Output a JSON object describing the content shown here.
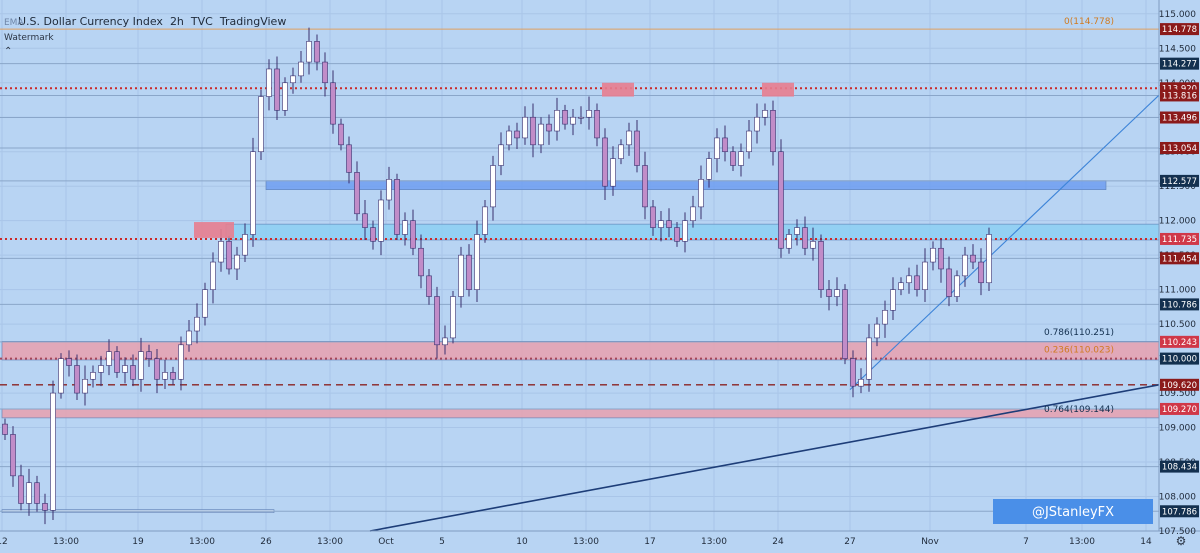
{
  "header": {
    "title": "U.S. Dollar Currency Index",
    "interval": "2h",
    "source": "TVC",
    "platform": "TradingView",
    "indicator": "EMA",
    "watermark_label": "Watermark"
  },
  "watermark": "@JStanleyFX",
  "colors": {
    "background": "#b8d4f3",
    "up_candle": "#ffffff",
    "down_candle": "#c18cc8",
    "wick": "#3a2f6e",
    "blue_zone": "#6f9ef0",
    "cyan_zone": "#8ccff2",
    "red_zone": "#e8a0ae",
    "dotted_red": "#cc2a2a",
    "dashed_dark_red": "#8b2323",
    "trendline_dark": "#1d3d78",
    "trendline_light": "#3d84d8",
    "label_dark_red": "#8b1a1a",
    "label_red": "#d03848",
    "label_blue": "#1f6fd0",
    "label_navy": "#13304f",
    "watermark_box": "#4a8fe8"
  },
  "chart_data": {
    "type": "candlestick",
    "title": "U.S. Dollar Currency Index · 2h · TVC",
    "ylim": [
      107.5,
      115.2
    ],
    "y_ticks": [
      107.5,
      108.0,
      108.5,
      109.0,
      109.5,
      110.0,
      110.5,
      111.0,
      111.5,
      112.0,
      112.5,
      113.0,
      113.5,
      114.0,
      114.5,
      115.0
    ],
    "x_ticks": [
      {
        "i": 0,
        "label": "12"
      },
      {
        "i": 8,
        "label": "13:00"
      },
      {
        "i": 17,
        "label": "19"
      },
      {
        "i": 25,
        "label": "13:00"
      },
      {
        "i": 33,
        "label": "26"
      },
      {
        "i": 41,
        "label": "13:00"
      },
      {
        "i": 48,
        "label": "Oct"
      },
      {
        "i": 55,
        "label": "5"
      },
      {
        "i": 65,
        "label": "10"
      },
      {
        "i": 73,
        "label": "13:00"
      },
      {
        "i": 81,
        "label": "17"
      },
      {
        "i": 89,
        "label": "13:00"
      },
      {
        "i": 97,
        "label": "24"
      },
      {
        "i": 106,
        "label": "27"
      },
      {
        "i": 116,
        "label": "Nov"
      },
      {
        "i": 128,
        "label": "7"
      },
      {
        "i": 135,
        "label": "13:00"
      },
      {
        "i": 143,
        "label": "14"
      }
    ],
    "candles_x_range": [
      0,
      145
    ],
    "closes": [
      108.9,
      108.3,
      107.9,
      108.2,
      107.9,
      107.8,
      109.5,
      110.0,
      109.9,
      109.5,
      109.7,
      109.8,
      109.9,
      110.1,
      109.8,
      109.9,
      109.7,
      110.1,
      110.0,
      109.7,
      109.8,
      109.7,
      110.2,
      110.4,
      110.6,
      111.0,
      111.4,
      111.7,
      111.3,
      111.5,
      111.8,
      113.0,
      113.8,
      114.2,
      113.6,
      114.0,
      114.1,
      114.3,
      114.6,
      114.3,
      114.0,
      113.4,
      113.1,
      112.7,
      112.1,
      111.9,
      111.7,
      112.3,
      112.6,
      111.8,
      112.0,
      111.6,
      111.2,
      110.9,
      110.2,
      110.3,
      110.9,
      111.5,
      111.0,
      111.8,
      112.2,
      112.8,
      113.1,
      113.3,
      113.2,
      113.5,
      113.1,
      113.4,
      113.3,
      113.6,
      113.4,
      113.5,
      113.5,
      113.6,
      113.2,
      112.5,
      112.9,
      113.1,
      113.3,
      112.8,
      112.2,
      111.9,
      112.0,
      111.9,
      111.7,
      112.0,
      112.2,
      112.6,
      112.9,
      113.2,
      113.0,
      112.8,
      113.0,
      113.3,
      113.5,
      113.6,
      113.0,
      111.6,
      111.8,
      111.9,
      111.6,
      111.7,
      111.0,
      110.9,
      111.0,
      110.0,
      109.6,
      109.7,
      110.3,
      110.5,
      110.7,
      111.0,
      111.1,
      111.2,
      111.0,
      111.4,
      111.6,
      111.3,
      110.9,
      111.2,
      111.5,
      111.4,
      111.1,
      111.8
    ],
    "levels": [
      {
        "price": 114.778,
        "label": "114.778",
        "color": "#8b1a1a",
        "style": "thin"
      },
      {
        "price": 114.277,
        "label": "114.277",
        "color": "#13304f",
        "style": "thin"
      },
      {
        "price": 113.92,
        "label": "113.920",
        "color": "#8b1a1a",
        "style": "dotted"
      },
      {
        "price": 113.816,
        "label": "113.816",
        "color": "#8b1a1a",
        "style": "thin"
      },
      {
        "price": 113.496,
        "label": "113.496",
        "color": "#8b1a1a",
        "style": "thin"
      },
      {
        "price": 113.054,
        "label": "113.054",
        "color": "#8b1a1a",
        "style": "thin"
      },
      {
        "price": 112.577,
        "label": "112.577",
        "color": "#13304f",
        "style": "thin"
      },
      {
        "price": 111.735,
        "label": "111.735",
        "color": "#d03848",
        "style": "dotted"
      },
      {
        "price": 111.454,
        "label": "111.454",
        "color": "#8b1a1a",
        "style": "thin"
      },
      {
        "price": 110.786,
        "label": "110.786",
        "color": "#13304f",
        "style": "thin"
      },
      {
        "price": 110.243,
        "label": "110.243",
        "color": "#d03848",
        "style": "thin"
      },
      {
        "price": 110.0,
        "label": "110.000",
        "color": "#13304f",
        "style": "dotted"
      },
      {
        "price": 109.62,
        "label": "109.620",
        "color": "#8b1a1a",
        "style": "dashed"
      },
      {
        "price": 109.27,
        "label": "109.270",
        "color": "#d03848",
        "style": "thin"
      },
      {
        "price": 108.434,
        "label": "108.434",
        "color": "#13304f",
        "style": "thin"
      },
      {
        "price": 107.786,
        "label": "107.786",
        "color": "#13304f",
        "style": "thin"
      }
    ],
    "zones": [
      {
        "name": "blue-resistance-zone",
        "y1": 112.45,
        "y2": 112.58,
        "x1": 33,
        "x2": 138,
        "color": "#6f9ef0"
      },
      {
        "name": "cyan-zone",
        "y1": 111.72,
        "y2": 111.95,
        "x1": 28,
        "x2": 145,
        "color": "#8ccff2"
      },
      {
        "name": "red-zone-110",
        "y1": 109.98,
        "y2": 110.25,
        "x1": 0,
        "x2": 145,
        "color": "#e8a0ae"
      },
      {
        "name": "red-zone-109",
        "y1": 109.14,
        "y2": 109.27,
        "x1": 0,
        "x2": 145,
        "color": "#e8a0ae"
      },
      {
        "name": "support-box-107",
        "y1": 107.77,
        "y2": 107.81,
        "x1": 0,
        "x2": 34,
        "color": "#c8d8ee"
      }
    ],
    "markers": [
      {
        "name": "red-marker-sep",
        "x1": 24,
        "x2": 29,
        "y1": 111.75,
        "y2": 111.98
      },
      {
        "name": "red-marker-oct-a",
        "x1": 75,
        "x2": 79,
        "y1": 113.8,
        "y2": 114.0
      },
      {
        "name": "red-marker-oct-b",
        "x1": 95,
        "x2": 99,
        "y1": 113.8,
        "y2": 114.0
      }
    ],
    "fib_labels": [
      {
        "text": "0(114.778)",
        "price": 114.82,
        "x": 137,
        "color": "#d07a20"
      },
      {
        "text": "0.786(110.251)",
        "price": 110.31,
        "x": 137,
        "color": "#13304f"
      },
      {
        "text": "0.236(110.023)",
        "price": 110.06,
        "x": 137,
        "color": "#d07a20"
      },
      {
        "text": "0.764(109.144)",
        "price": 109.2,
        "x": 137,
        "color": "#13304f"
      }
    ],
    "trendlines": [
      {
        "name": "long-term-trendline",
        "x1": 46,
        "y1": 107.5,
        "x2": 145,
        "y2": 109.62,
        "color": "#1d3d78",
        "width": 1.6
      },
      {
        "name": "rising-trendline",
        "x1": 106,
        "y1": 109.55,
        "x2": 145,
        "y2": 113.82,
        "color": "#3d84d8",
        "width": 1.1
      }
    ]
  }
}
